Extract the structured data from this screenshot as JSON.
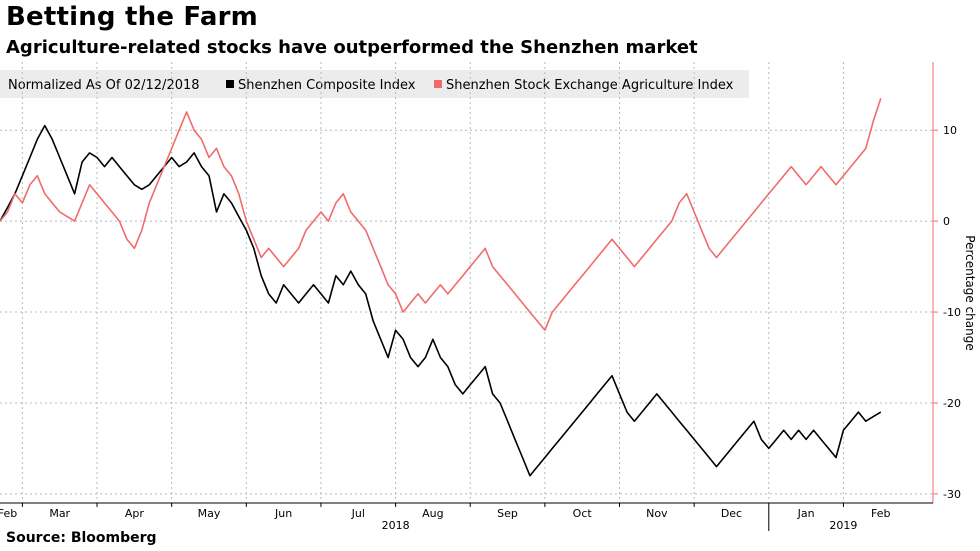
{
  "header": {
    "title": "Betting the Farm",
    "subtitle": "Agriculture-related stocks have outperformed the Shenzhen market"
  },
  "footer": {
    "source": "Source: Bloomberg"
  },
  "chart_data": {
    "type": "line",
    "title": "Betting the Farm",
    "subtitle": "Agriculture-related stocks have outperformed the Shenzhen market",
    "legend": {
      "note": "Normalized As Of 02/12/2018",
      "placement": "top-left"
    },
    "ylabel": "Percentage change",
    "ylim": [
      -31,
      17.5
    ],
    "yticks": [
      10,
      0,
      -10,
      -20,
      -30
    ],
    "y_axis_side": "right",
    "grid": true,
    "x_domain": [
      0,
      12.5
    ],
    "month_labels": [
      {
        "label": "Feb",
        "pos": 0.1
      },
      {
        "label": "Mar",
        "pos": 0.8
      },
      {
        "label": "Apr",
        "pos": 1.8
      },
      {
        "label": "May",
        "pos": 2.8
      },
      {
        "label": "Jun",
        "pos": 3.8
      },
      {
        "label": "Jul",
        "pos": 4.8
      },
      {
        "label": "Aug",
        "pos": 5.8
      },
      {
        "label": "Sep",
        "pos": 6.8
      },
      {
        "label": "Oct",
        "pos": 7.8
      },
      {
        "label": "Nov",
        "pos": 8.8
      },
      {
        "label": "Dec",
        "pos": 9.8
      },
      {
        "label": "Jan",
        "pos": 10.8
      },
      {
        "label": "Feb",
        "pos": 11.8
      }
    ],
    "month_gridlines": [
      0.3,
      1.3,
      2.3,
      3.3,
      4.3,
      5.3,
      6.3,
      7.3,
      8.3,
      9.3,
      10.3,
      11.3
    ],
    "year_labels": [
      {
        "label": "2018",
        "pos": 5.3
      },
      {
        "label": "2019",
        "pos": 11.3
      }
    ],
    "year_separator": 10.3,
    "series": [
      {
        "name": "Shenzhen Composite Index",
        "color": "#000000",
        "x": [
          0,
          0.1,
          0.2,
          0.3,
          0.4,
          0.5,
          0.6,
          0.7,
          0.75,
          0.8,
          0.9,
          1.0,
          1.1,
          1.2,
          1.3,
          1.4,
          1.5,
          1.6,
          1.7,
          1.8,
          1.9,
          2.0,
          2.1,
          2.2,
          2.3,
          2.4,
          2.5,
          2.6,
          2.7,
          2.8,
          2.9,
          3.0,
          3.1,
          3.2,
          3.3,
          3.4,
          3.5,
          3.6,
          3.7,
          3.8,
          3.9,
          4.0,
          4.1,
          4.2,
          4.3,
          4.4,
          4.5,
          4.6,
          4.7,
          4.8,
          4.9,
          5.0,
          5.1,
          5.2,
          5.3,
          5.4,
          5.5,
          5.6,
          5.7,
          5.8,
          5.9,
          6.0,
          6.1,
          6.2,
          6.3,
          6.4,
          6.5,
          6.6,
          6.7,
          6.8,
          6.9,
          7.0,
          7.1,
          7.2,
          7.3,
          7.4,
          7.5,
          7.6,
          7.7,
          7.8,
          7.9,
          8.0,
          8.1,
          8.2,
          8.3,
          8.4,
          8.5,
          8.6,
          8.7,
          8.8,
          8.9,
          9.0,
          9.1,
          9.2,
          9.3,
          9.4,
          9.5,
          9.6,
          9.7,
          9.8,
          9.9,
          10.0,
          10.1,
          10.2,
          10.3,
          10.4,
          10.5,
          10.6,
          10.7,
          10.8,
          10.9,
          11.0,
          11.1,
          11.2,
          11.3,
          11.4,
          11.5,
          11.6,
          11.7,
          11.8
        ],
        "values": [
          0,
          1.5,
          3,
          5,
          7,
          9,
          10.5,
          9,
          8,
          7,
          5,
          3,
          6.5,
          7.5,
          7,
          6,
          7,
          6,
          5,
          4,
          3.5,
          4,
          5,
          6,
          7,
          6,
          6.5,
          7.5,
          6,
          5,
          1,
          3,
          2,
          0.5,
          -1,
          -3,
          -6,
          -8,
          -9,
          -7,
          -8,
          -9,
          -8,
          -7,
          -8,
          -9,
          -6,
          -7,
          -5.5,
          -7,
          -8,
          -11,
          -13,
          -15,
          -12,
          -13,
          -15,
          -16,
          -15,
          -13,
          -15,
          -16,
          -18,
          -19,
          -18,
          -17,
          -16,
          -19,
          -20,
          -22,
          -24,
          -26,
          -28,
          -27,
          -26,
          -25,
          -24,
          -23,
          -22,
          -21,
          -20,
          -19,
          -18,
          -17,
          -19,
          -21,
          -22,
          -21,
          -20,
          -19,
          -20,
          -21,
          -22,
          -23,
          -24,
          -25,
          -26,
          -27,
          -26,
          -25,
          -24,
          -23,
          -22,
          -24,
          -25,
          -24,
          -23,
          -24,
          -23,
          -24,
          -23,
          -24,
          -25,
          -26,
          -23,
          -22,
          -21,
          -22,
          -21.5,
          -21
        ],
        "end_value": -21
      },
      {
        "name": "Shenzhen Stock Exchange Agriculture Index",
        "color": "#f06b6b",
        "x": [
          0,
          0.1,
          0.2,
          0.3,
          0.4,
          0.5,
          0.6,
          0.7,
          0.75,
          0.8,
          0.9,
          1.0,
          1.1,
          1.2,
          1.3,
          1.4,
          1.5,
          1.6,
          1.7,
          1.8,
          1.9,
          2.0,
          2.1,
          2.2,
          2.3,
          2.4,
          2.5,
          2.6,
          2.7,
          2.8,
          2.9,
          3.0,
          3.1,
          3.2,
          3.3,
          3.4,
          3.5,
          3.6,
          3.7,
          3.8,
          3.9,
          4.0,
          4.1,
          4.2,
          4.3,
          4.4,
          4.5,
          4.6,
          4.7,
          4.8,
          4.9,
          5.0,
          5.1,
          5.2,
          5.3,
          5.4,
          5.5,
          5.6,
          5.7,
          5.8,
          5.9,
          6.0,
          6.1,
          6.2,
          6.3,
          6.4,
          6.5,
          6.6,
          6.7,
          6.8,
          6.9,
          7.0,
          7.1,
          7.2,
          7.3,
          7.4,
          7.5,
          7.6,
          7.7,
          7.8,
          7.9,
          8.0,
          8.1,
          8.2,
          8.3,
          8.4,
          8.5,
          8.6,
          8.7,
          8.8,
          8.9,
          9.0,
          9.1,
          9.2,
          9.3,
          9.4,
          9.5,
          9.6,
          9.7,
          9.8,
          9.9,
          10.0,
          10.1,
          10.2,
          10.3,
          10.4,
          10.5,
          10.6,
          10.7,
          10.8,
          10.9,
          11.0,
          11.1,
          11.2,
          11.3,
          11.4,
          11.5,
          11.6,
          11.7,
          11.8
        ],
        "values": [
          0,
          1,
          3,
          2,
          4,
          5,
          3,
          2,
          1.5,
          1,
          0.5,
          0,
          2,
          4,
          3,
          2,
          1,
          0,
          -2,
          -3,
          -1,
          2,
          4,
          6,
          8,
          10,
          12,
          10,
          9,
          7,
          8,
          6,
          5,
          3,
          0,
          -2,
          -4,
          -3,
          -4,
          -5,
          -4,
          -3,
          -1,
          0,
          1,
          0,
          2,
          3,
          1,
          0,
          -1,
          -3,
          -5,
          -7,
          -8,
          -10,
          -9,
          -8,
          -9,
          -8,
          -7,
          -8,
          -7,
          -6,
          -5,
          -4,
          -3,
          -5,
          -6,
          -7,
          -8,
          -9,
          -10,
          -11,
          -12,
          -10,
          -9,
          -8,
          -7,
          -6,
          -5,
          -4,
          -3,
          -2,
          -3,
          -4,
          -5,
          -4,
          -3,
          -2,
          -1,
          0,
          2,
          3,
          1,
          -1,
          -3,
          -4,
          -3,
          -2,
          -1,
          0,
          1,
          2,
          3,
          4,
          5,
          6,
          5,
          4,
          5,
          6,
          5,
          4,
          5,
          6,
          7,
          8,
          11,
          13.5
        ],
        "end_value": 13.5
      }
    ]
  }
}
